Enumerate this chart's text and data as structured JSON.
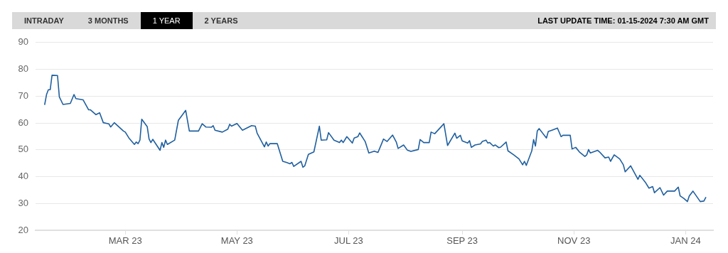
{
  "chart_data": {
    "type": "line",
    "annotations": [
      "INTRADAY",
      "3 MONTHS",
      "1 YEAR",
      "2 YEARS",
      "LAST UPDATE TIME: 01-15-2024 7:30 AM GMT"
    ],
    "x": [
      "2023-01-16",
      "2023-01-17",
      "2023-01-18",
      "2023-01-19",
      "2023-01-20",
      "2023-01-23",
      "2023-01-24",
      "2023-01-26",
      "2023-01-30",
      "2023-02-01",
      "2023-02-02",
      "2023-02-06",
      "2023-02-09",
      "2023-02-10",
      "2023-02-13",
      "2023-02-15",
      "2023-02-17",
      "2023-02-20",
      "2023-02-21",
      "2023-02-23",
      "2023-02-28",
      "2023-03-01",
      "2023-03-03",
      "2023-03-06",
      "2023-03-07",
      "2023-03-08",
      "2023-03-09",
      "2023-03-10",
      "2023-03-13",
      "2023-03-14",
      "2023-03-15",
      "2023-03-16",
      "2023-03-20",
      "2023-03-21",
      "2023-03-22",
      "2023-03-23",
      "2023-03-24",
      "2023-03-28",
      "2023-03-30",
      "2023-04-03",
      "2023-04-05",
      "2023-04-10",
      "2023-04-12",
      "2023-04-14",
      "2023-04-17",
      "2023-04-18",
      "2023-04-19",
      "2023-04-23",
      "2023-04-26",
      "2023-04-27",
      "2023-04-28",
      "2023-05-01",
      "2023-05-04",
      "2023-05-09",
      "2023-05-11",
      "2023-05-12",
      "2023-05-16",
      "2023-05-17",
      "2023-05-18",
      "2023-05-19",
      "2023-05-23",
      "2023-05-26",
      "2023-05-28",
      "2023-05-30",
      "2023-05-31",
      "2023-06-01",
      "2023-06-05",
      "2023-06-06",
      "2023-06-07",
      "2023-06-09",
      "2023-06-12",
      "2023-06-15",
      "2023-06-16",
      "2023-06-19",
      "2023-06-20",
      "2023-06-23",
      "2023-06-26",
      "2023-06-27",
      "2023-06-28",
      "2023-06-30",
      "2023-07-03",
      "2023-07-04",
      "2023-07-06",
      "2023-07-07",
      "2023-07-10",
      "2023-07-12",
      "2023-07-15",
      "2023-07-17",
      "2023-07-19",
      "2023-07-20",
      "2023-07-22",
      "2023-07-25",
      "2023-07-27",
      "2023-07-28",
      "2023-07-31",
      "2023-08-02",
      "2023-08-04",
      "2023-08-08",
      "2023-08-09",
      "2023-08-11",
      "2023-08-14",
      "2023-08-15",
      "2023-08-17",
      "2023-08-22",
      "2023-08-24",
      "2023-08-28",
      "2023-08-29",
      "2023-08-31",
      "2023-09-01",
      "2023-09-04",
      "2023-09-05",
      "2023-09-06",
      "2023-09-08",
      "2023-09-11",
      "2023-09-12",
      "2023-09-14",
      "2023-09-15",
      "2023-09-16",
      "2023-09-18",
      "2023-09-19",
      "2023-09-21",
      "2023-09-22",
      "2023-09-25",
      "2023-09-26",
      "2023-09-29",
      "2023-10-02",
      "2023-10-04",
      "2023-10-05",
      "2023-10-06",
      "2023-10-09",
      "2023-10-10",
      "2023-10-11",
      "2023-10-12",
      "2023-10-13",
      "2023-10-17",
      "2023-10-18",
      "2023-10-20",
      "2023-10-23",
      "2023-10-25",
      "2023-10-26",
      "2023-10-30",
      "2023-10-31",
      "2023-11-02",
      "2023-11-04",
      "2023-11-07",
      "2023-11-08",
      "2023-11-09",
      "2023-11-10",
      "2023-11-14",
      "2023-11-15",
      "2023-11-18",
      "2023-11-20",
      "2023-11-21",
      "2023-11-23",
      "2023-11-26",
      "2023-11-28",
      "2023-11-29",
      "2023-12-02",
      "2023-12-06",
      "2023-12-07",
      "2023-12-10",
      "2023-12-12",
      "2023-12-14",
      "2023-12-15",
      "2023-12-18",
      "2023-12-20",
      "2023-12-22",
      "2023-12-26",
      "2023-12-28",
      "2023-12-29",
      "2023-12-31",
      "2024-01-02",
      "2024-01-03",
      "2024-01-05",
      "2024-01-09",
      "2024-01-11",
      "2024-01-12"
    ],
    "series": [
      {
        "color": "#1f5f9f",
        "values": [
          66.9,
          70.6,
          72.4,
          72.4,
          77.8,
          77.7,
          69.7,
          66.9,
          67.3,
          70.6,
          69.1,
          68.6,
          64.9,
          64.9,
          63.1,
          63.8,
          60.1,
          59.7,
          58.5,
          60.1,
          57.0,
          56.6,
          54.4,
          52.0,
          52.9,
          52.3,
          53.6,
          61.4,
          58.6,
          54.0,
          52.7,
          53.9,
          49.8,
          52.7,
          50.9,
          53.6,
          52.0,
          53.6,
          61.0,
          64.7,
          57.0,
          57.0,
          59.7,
          58.5,
          58.4,
          59.0,
          57.3,
          56.6,
          57.7,
          59.5,
          58.8,
          59.8,
          57.3,
          59.0,
          58.8,
          56.2,
          51.1,
          52.9,
          51.4,
          52.3,
          52.3,
          45.7,
          45.3,
          44.8,
          45.3,
          43.8,
          45.7,
          43.5,
          44.0,
          48.3,
          49.2,
          58.8,
          53.6,
          53.7,
          56.4,
          53.6,
          52.7,
          53.6,
          52.7,
          54.9,
          52.5,
          54.4,
          54.9,
          56.3,
          53.1,
          48.8,
          49.5,
          49.0,
          52.3,
          54.0,
          53.1,
          55.5,
          52.9,
          50.5,
          51.8,
          49.9,
          49.4,
          50.1,
          53.8,
          52.7,
          52.7,
          56.6,
          56.0,
          59.7,
          51.6,
          56.2,
          54.3,
          55.4,
          53.3,
          52.5,
          53.4,
          50.9,
          51.8,
          52.2,
          53.1,
          53.6,
          52.5,
          52.7,
          51.4,
          51.8,
          50.8,
          51.0,
          52.9,
          49.6,
          48.2,
          46.6,
          44.4,
          45.7,
          44.2,
          49.6,
          53.8,
          51.4,
          57.0,
          57.9,
          54.4,
          56.8,
          57.3,
          58.1,
          54.9,
          55.4,
          55.4,
          50.3,
          50.9,
          49.2,
          47.5,
          48.1,
          50.1,
          48.8,
          49.8,
          49.2,
          47.0,
          47.3,
          45.7,
          48.1,
          46.6,
          44.4,
          41.8,
          44.0,
          39.0,
          40.5,
          37.9,
          35.7,
          36.3,
          34.0,
          35.9,
          33.1,
          34.6,
          34.6,
          36.1,
          32.8,
          31.9,
          30.7,
          32.8,
          34.6,
          30.7,
          30.9,
          32.2
        ]
      }
    ],
    "xlim": [
      "2023-01-11",
      "2024-01-16"
    ],
    "xticks": [
      {
        "value": "2023-03-01",
        "label": "MAR 23"
      },
      {
        "value": "2023-05-01",
        "label": "MAY 23"
      },
      {
        "value": "2023-07-01",
        "label": "JUL 23"
      },
      {
        "value": "2023-09-01",
        "label": "SEP 23"
      },
      {
        "value": "2023-11-01",
        "label": "NOV 23"
      },
      {
        "value": "2024-01-01",
        "label": "JAN 24"
      }
    ],
    "ylim": [
      20,
      90
    ],
    "yticks": [
      20,
      30,
      40,
      50,
      60,
      70,
      80,
      90
    ],
    "grid": "y",
    "legend": false,
    "marker": "none",
    "line_style": "solid"
  }
}
